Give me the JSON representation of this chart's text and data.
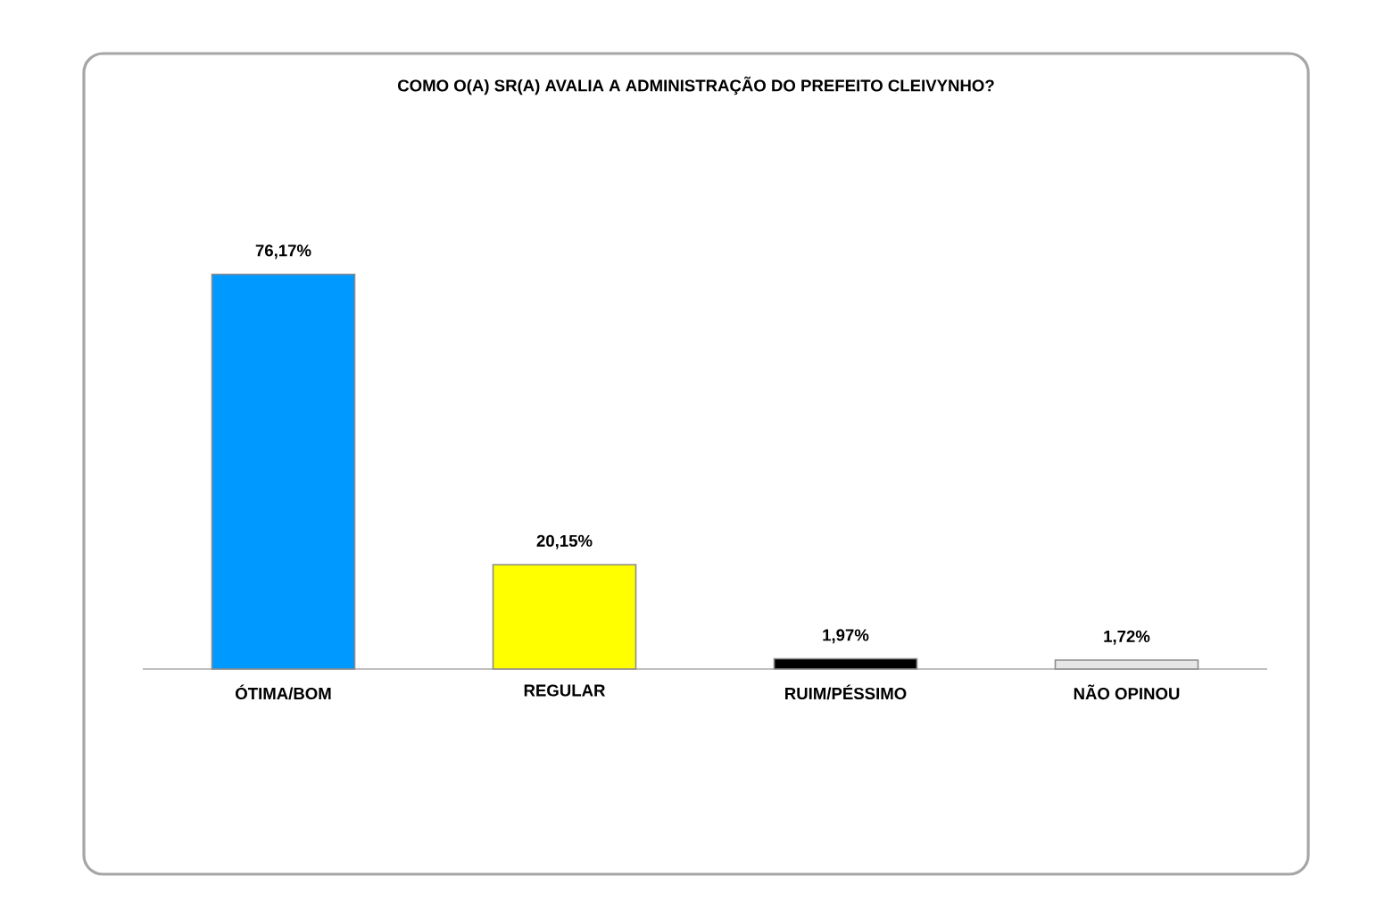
{
  "chart_data": {
    "type": "bar",
    "title": "COMO O(A) SR(A) AVALIA A ADMINISTRAÇÃO DO PREFEITO CLEIVYNHO?",
    "categories": [
      "ÓTIMA/BOM",
      "REGULAR",
      "RUIM/PÉSSIMO",
      "NÃO OPINOU"
    ],
    "values": [
      76.17,
      20.15,
      1.97,
      1.72
    ],
    "value_labels": [
      "76,17%",
      "20,15%",
      "1,97%",
      "1,72%"
    ],
    "colors": [
      "#0099ff",
      "#ffff00",
      "#000000",
      "#e6e6e6"
    ]
  }
}
